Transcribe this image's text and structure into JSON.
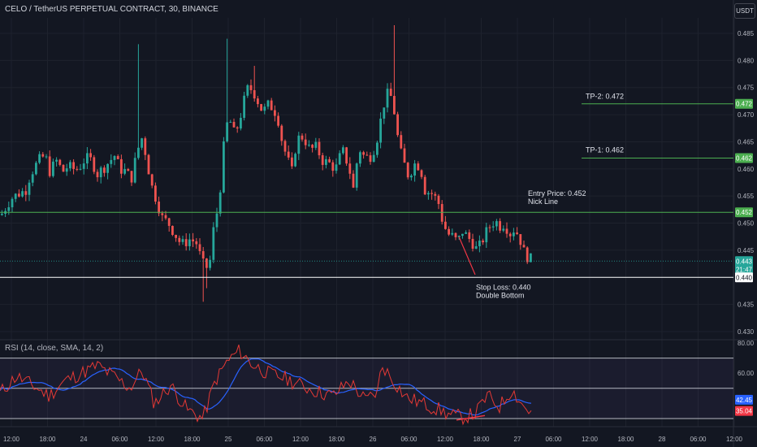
{
  "header": {
    "title": "CELO / TetherUS PERPETUAL CONTRACT, 30, BINANCE",
    "currency": "USDT"
  },
  "colors": {
    "background": "#131722",
    "grid": "#1e222d",
    "up": "#26a69a",
    "down": "#ef5350",
    "level_line": "#4caf50",
    "stop_line": "#ffffff",
    "rsi_line": "#e53935",
    "rsi_sma": "#2962ff"
  },
  "chart_data": {
    "type": "candlestick",
    "title": "CELO / TetherUS PERPETUAL CONTRACT, 30, BINANCE",
    "y_axis": {
      "ticks": [
        "0.485",
        "0.480",
        "0.475",
        "0.470",
        "0.465",
        "0.460",
        "0.455",
        "0.450",
        "0.445",
        "0.435",
        "0.430"
      ],
      "range": [
        0.428,
        0.488
      ]
    },
    "x_axis": {
      "ticks": [
        "12:00",
        "18:00",
        "24",
        "06:00",
        "12:00",
        "18:00",
        "25",
        "06:00",
        "12:00",
        "18:00",
        "26",
        "06:00",
        "12:00",
        "18:00",
        "27",
        "06:00",
        "12:00",
        "18:00",
        "28",
        "06:00",
        "12:00"
      ]
    },
    "levels": [
      {
        "label": "TP-2: 0.472",
        "value": 0.472,
        "tag": "0.472"
      },
      {
        "label": "TP-1: 0.462",
        "value": 0.462,
        "tag": "0.462"
      },
      {
        "label": "Entry Price: 0.452",
        "sublabel": "Nick Line",
        "value": 0.452,
        "tag": "0.452"
      },
      {
        "label": "Stop Loss: 0.440",
        "sublabel": "Double Bottom",
        "value": 0.44,
        "tag": "0.440"
      }
    ],
    "current": {
      "price": "0.443",
      "countdown": "21:47",
      "value": 0.443
    },
    "rsi": {
      "title": "RSI (14, close, SMA, 14, 2)",
      "ticks": [
        "80.00",
        "60.00"
      ],
      "range": [
        25,
        82
      ],
      "bands": [
        70,
        50,
        30
      ],
      "rsi_value": "35.04",
      "sma_value": "42.45"
    }
  }
}
